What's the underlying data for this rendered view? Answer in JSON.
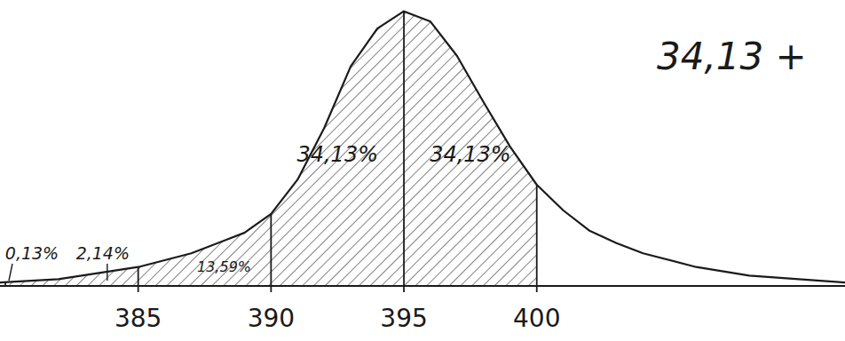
{
  "chart_data": {
    "type": "area",
    "x": [
      379.8,
      382,
      385,
      387,
      389,
      390,
      391,
      392,
      393,
      394,
      395,
      396,
      397,
      398,
      399,
      400,
      401,
      402,
      403,
      404,
      406,
      408,
      411.6
    ],
    "values": [
      0.1,
      0.2,
      0.55,
      0.95,
      1.55,
      2.1,
      3.1,
      4.6,
      6.4,
      7.5,
      8.0,
      7.7,
      6.7,
      5.35,
      4.05,
      2.95,
      2.2,
      1.6,
      1.25,
      0.95,
      0.55,
      0.3,
      0.1
    ],
    "color": "#1a1a1a",
    "xlim": [
      379.8,
      411.6
    ],
    "ylim": [
      0,
      8.2
    ],
    "xticks": [
      385,
      390,
      395,
      400
    ],
    "tick_labels": "x",
    "grid": false,
    "boundaries": [
      380,
      385,
      390,
      395,
      400
    ],
    "region_labels": [
      "0,13%",
      "2,14%",
      "13,59%",
      "34,13%",
      "34,13%"
    ],
    "annotations": [
      "34,13 +"
    ]
  }
}
